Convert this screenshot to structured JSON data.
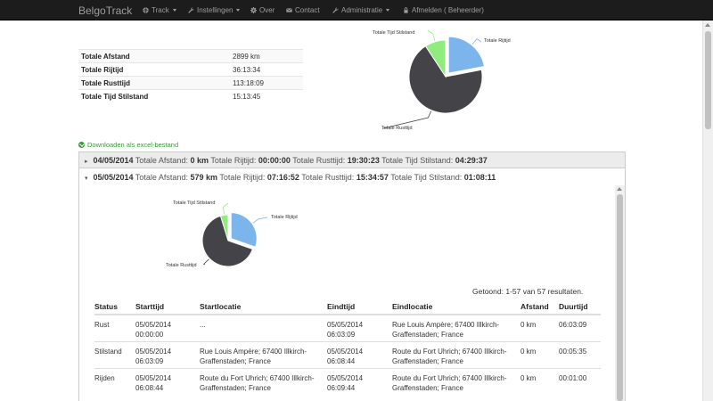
{
  "navbar": {
    "brand": "BelgoTrack",
    "items": [
      {
        "label": "Track",
        "icon": "globe-icon",
        "dropdown": true
      },
      {
        "label": "Instellingen",
        "icon": "wrench-icon",
        "dropdown": true
      },
      {
        "label": "Over",
        "icon": "gear-icon",
        "dropdown": false
      },
      {
        "label": "Contact",
        "icon": "envelope-icon",
        "dropdown": false
      },
      {
        "label": "Administratie",
        "icon": "wrench-icon",
        "dropdown": true
      },
      {
        "label": "Afmelden ( Beheerder)",
        "icon": "lock-icon",
        "dropdown": false
      }
    ]
  },
  "summary": {
    "rows": [
      {
        "label": "Totale Afstand",
        "value": "2899 km"
      },
      {
        "label": "Totale Rijtijd",
        "value": "36:13:34"
      },
      {
        "label": "Totale Rusttijd",
        "value": "113:18:09"
      },
      {
        "label": "Totale Tijd Stilstand",
        "value": "15:13:45"
      }
    ]
  },
  "summary_chart": {
    "chart_data": {
      "type": "pie",
      "slices": [
        {
          "label": "Totale Rijtijd",
          "value": 36.23,
          "color": "#7cb5ec"
        },
        {
          "label": "Totale Rusttijd",
          "value": 113.3,
          "color": "#434348"
        },
        {
          "label": "Totale Tijd Stilstand",
          "value": 15.23,
          "color": "#90ed7d"
        }
      ]
    }
  },
  "excel_link": "Downloaden als excel-bestand",
  "days": [
    {
      "date": "04/05/2014",
      "afstand_label": "Totale Afstand:",
      "afstand": "0 km",
      "rijtijd_label": "Totale Rijtijd:",
      "rijtijd": "00:00:00",
      "rusttijd_label": "Totale Rusttijd:",
      "rusttijd": "19:30:23",
      "stilstand_label": "Totale Tijd Stilstand:",
      "stilstand": "04:29:37"
    },
    {
      "date": "05/05/2014",
      "afstand_label": "Totale Afstand:",
      "afstand": "579 km",
      "rijtijd_label": "Totale Rijtijd:",
      "rijtijd": "07:16:52",
      "rusttijd_label": "Totale Rusttijd:",
      "rusttijd": "15:34:57",
      "stilstand_label": "Totale Tijd Stilstand:",
      "stilstand": "01:08:11"
    }
  ],
  "day_chart": {
    "chart_data": {
      "type": "pie",
      "slices": [
        {
          "label": "Totale Rijtijd",
          "value": 7.28,
          "color": "#7cb5ec"
        },
        {
          "label": "Totale Rusttijd",
          "value": 15.58,
          "color": "#434348"
        },
        {
          "label": "Totale Tijd Stilstand",
          "value": 1.14,
          "color": "#90ed7d"
        }
      ]
    }
  },
  "trips": {
    "count_text": "Getoond: 1-57 van 57 resultaten.",
    "headers": [
      "Status",
      "Starttijd",
      "Startlocatie",
      "Eindtijd",
      "Eindlocatie",
      "Afstand",
      "Duurtijd"
    ],
    "rows": [
      [
        "Rust",
        "05/05/2014 00:00:00",
        "...",
        "05/05/2014 06:03:09",
        "Rue Louis Ampère; 67400 Illkirch-Graffenstaden; France",
        "0 km",
        "06:03:09"
      ],
      [
        "Stilstand",
        "05/05/2014 06:03:09",
        "Rue Louis Ampère; 67400 Illkirch-Graffenstaden; France",
        "05/05/2014 06:08:44",
        "Route du Fort Uhrich; 67400 Illkirch-Graffenstaden; France",
        "0 km",
        "00:05:35"
      ],
      [
        "Rijden",
        "05/05/2014 06:08:44",
        "Route du Fort Uhrich; 67400 Illkirch-Graffenstaden; France",
        "05/05/2014 06:09:44",
        "Route du Fort Uhrich; 67400 Illkirch-Graffenstaden; France",
        "0 km",
        "00:01:00"
      ]
    ]
  }
}
